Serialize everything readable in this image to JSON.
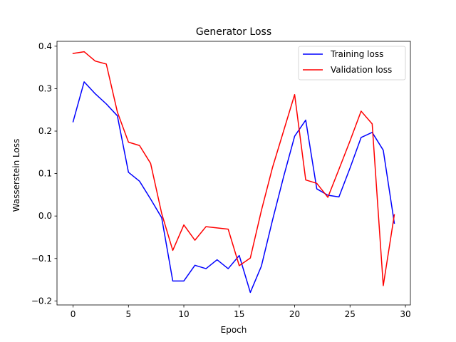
{
  "chart_data": {
    "type": "line",
    "title": "Generator Loss",
    "xlabel": "Epoch",
    "ylabel": "Wasserstein Loss",
    "xlim": [
      -1.45,
      30.45
    ],
    "ylim": [
      -0.2095,
      0.4115
    ],
    "xticks": [
      0,
      5,
      10,
      15,
      20,
      25,
      30
    ],
    "yticks": [
      -0.2,
      -0.1,
      0.0,
      0.1,
      0.2,
      0.3,
      0.4
    ],
    "ytick_labels": [
      "−0.2",
      "−0.1",
      "0.0",
      "0.1",
      "0.2",
      "0.3",
      "0.4"
    ],
    "grid": false,
    "legend": "top-right",
    "x": [
      0,
      1,
      2,
      3,
      4,
      5,
      6,
      7,
      8,
      9,
      10,
      11,
      12,
      13,
      14,
      15,
      16,
      17,
      18,
      19,
      20,
      21,
      22,
      23,
      24,
      25,
      26,
      27,
      28,
      29
    ],
    "series": [
      {
        "name": "Training loss",
        "color": "#0000ff",
        "values": [
          0.222,
          0.316,
          0.288,
          0.264,
          0.236,
          0.103,
          0.082,
          0.04,
          -0.004,
          -0.153,
          -0.153,
          -0.116,
          -0.124,
          -0.103,
          -0.124,
          -0.093,
          -0.18,
          -0.118,
          -0.01,
          0.092,
          0.188,
          0.226,
          0.064,
          0.049,
          0.045,
          0.113,
          0.185,
          0.197,
          0.155,
          -0.017
        ]
      },
      {
        "name": "Validation loss",
        "color": "#ff0000",
        "values": [
          0.383,
          0.387,
          0.365,
          0.358,
          0.245,
          0.174,
          0.166,
          0.124,
          0.006,
          -0.081,
          -0.021,
          -0.057,
          -0.025,
          -0.028,
          -0.031,
          -0.117,
          -0.099,
          0.013,
          0.114,
          0.2,
          0.286,
          0.085,
          0.077,
          0.044,
          0.11,
          0.177,
          0.247,
          0.217,
          -0.164,
          0.003
        ]
      }
    ]
  }
}
